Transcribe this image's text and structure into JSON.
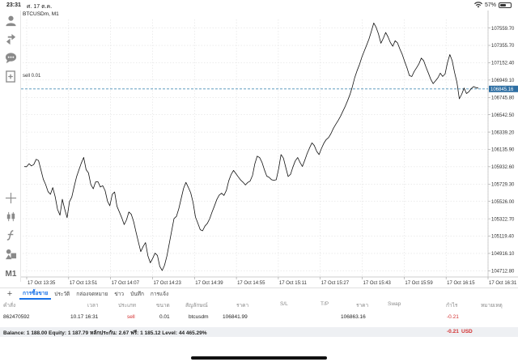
{
  "status": {
    "time": "23:31",
    "date": "ศ. 17 ต.ค.",
    "battery": "57%",
    "battery_level": 0.57
  },
  "toolbar": {
    "items": [
      {
        "name": "account-icon"
      },
      {
        "name": "trade-icon"
      },
      {
        "name": "chat-icon"
      },
      {
        "name": "new-order-icon"
      },
      {
        "name": "crosshair-icon"
      },
      {
        "name": "candles-icon"
      },
      {
        "name": "indicators-icon"
      },
      {
        "name": "objects-icon"
      },
      {
        "name": "timeframe-button",
        "label": "M1"
      }
    ]
  },
  "chart": {
    "title": "BTCUSDm, M1",
    "sell_line_label": "sell 0.01",
    "current_price": "106845.16",
    "price_labels": [
      "107559.70",
      "107355.70",
      "107152.40",
      "106949.10",
      "106745.80",
      "106542.50",
      "106339.20",
      "106135.90",
      "105932.60",
      "105729.30",
      "105526.00",
      "105322.70",
      "105119.40",
      "104916.10",
      "104712.80"
    ],
    "time_labels": [
      "17 Oct 13:35",
      "17 Oct 13:51",
      "17 Oct 14:07",
      "17 Oct 14:23",
      "17 Oct 14:39",
      "17 Oct 14:55",
      "17 Oct 15:11",
      "17 Oct 15:27",
      "17 Oct 15:43",
      "17 Oct 15:59",
      "17 Oct 16:15",
      "17 Oct 16:31"
    ],
    "colors": {
      "line": "#111111",
      "grid": "#d9d9d9",
      "sell_line": "#4a8fb8",
      "price_tag": "#2f6fa3"
    },
    "sell_level": 106845.16,
    "price_range": [
      104640,
      107660
    ],
    "series": [
      105934,
      105933,
      105968,
      105943,
      105958,
      106020,
      106006,
      105895,
      105786,
      105724,
      105640,
      105610,
      105688,
      105580,
      105432,
      105365,
      105552,
      105438,
      105335,
      105521,
      105577,
      105703,
      105815,
      105898,
      105976,
      106042,
      105898,
      105860,
      105725,
      105674,
      105754,
      105756,
      105695,
      105710,
      105651,
      105529,
      105475,
      105610,
      105636,
      105469,
      105402,
      105335,
      105254,
      105310,
      105402,
      105375,
      105290,
      105169,
      105050,
      104937,
      104998,
      105043,
      104890,
      104806,
      104857,
      104919,
      104893,
      104764,
      104716,
      104778,
      104885,
      105035,
      105180,
      105325,
      105350,
      105440,
      105562,
      105679,
      105749,
      105690,
      105628,
      105516,
      105343,
      105272,
      105195,
      105181,
      105236,
      105269,
      105324,
      105401,
      105474,
      105549,
      105600,
      105622,
      105596,
      105655,
      105767,
      105840,
      105890,
      105853,
      105815,
      105777,
      105752,
      105719,
      105748,
      105764,
      105831,
      105969,
      106057,
      106040,
      105985,
      105896,
      105822,
      105808,
      105781,
      105773,
      105781,
      105911,
      106075,
      106033,
      105923,
      105818,
      105844,
      105929,
      106001,
      106041,
      105983,
      105935,
      106010,
      106088,
      106154,
      106213,
      106181,
      106113,
      106075,
      106145,
      106208,
      106251,
      106275,
      106321,
      106381,
      106429,
      106474,
      106522,
      106583,
      106640,
      106708,
      106780,
      106870,
      106979,
      107060,
      107130,
      107218,
      107289,
      107359,
      107431,
      107520,
      107618,
      107568,
      107490,
      107381,
      107437,
      107507,
      107456,
      107389,
      107346,
      107410,
      107386,
      107312,
      107250,
      107168,
      107091,
      107003,
      106990,
      107049,
      107092,
      107140,
      107206,
      107178,
      107099,
      107030,
      106956,
      106907,
      106940,
      106976,
      107030,
      106991,
      107020,
      107152,
      107248,
      107176,
      107040,
      106920,
      106729,
      106782,
      106856,
      106791,
      106812,
      106849,
      106873,
      106860,
      106855
    ]
  },
  "tabs": {
    "add": "+",
    "items": [
      "การซื้อขาย",
      "ประวัติ",
      "กล่องจดหมาย",
      "ข่าว",
      "บันทึก",
      "การแจ้ง"
    ]
  },
  "table": {
    "headers": [
      "คำสั่ง",
      "เวลา",
      "ประเภท",
      "ขนาด",
      "สัญลักษณ์",
      "ราคา",
      "S/L",
      "T/P",
      "ราคา",
      "Swap",
      "กำไร",
      "หมายเหตุ"
    ],
    "row": {
      "order": "862470592",
      "time": "10.17 16:31",
      "type": "sell",
      "size": "0.01",
      "symbol": "btcusdm",
      "open_price": "106841.99",
      "current_price": "106863.16",
      "profit": "-0.21"
    }
  },
  "balance": {
    "summary": "Balance: 1 188.00 Equity: 1 187.79 หลักประกัน: 2.67 ฟรี: 1 185.12 Level: 44 465.29%",
    "profit": "-0.21",
    "currency": "USD"
  }
}
